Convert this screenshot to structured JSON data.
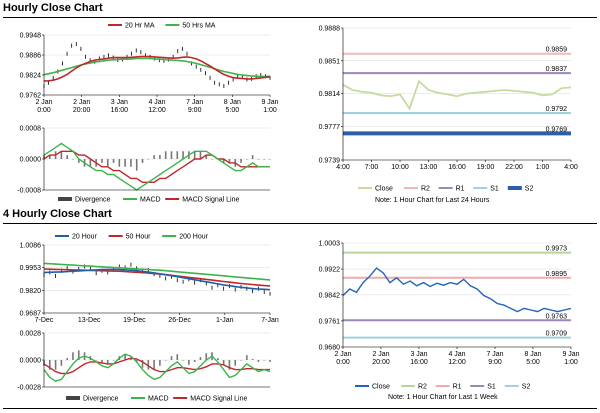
{
  "hourly": {
    "title": "Hourly Close Chart",
    "ma_legend": [
      "20 Hr MA",
      "50 Hrs MA"
    ],
    "price": {
      "yticks": [
        "0.9948",
        "0.9886",
        "0.9824",
        "0.9762"
      ],
      "ylim": [
        0.9762,
        0.9948
      ],
      "xticks": [
        [
          "2 Jan",
          "0:00"
        ],
        [
          "2 Jan",
          "20:00"
        ],
        [
          "3 Jan",
          "16:00"
        ],
        [
          "4 Jan",
          "12:00"
        ],
        [
          "7 Jan",
          "9:00"
        ],
        [
          "8 Jan",
          "5:00"
        ],
        [
          "9 Jan",
          "1:00"
        ]
      ],
      "close": [
        0.979,
        0.98,
        0.9815,
        0.9835,
        0.986,
        0.989,
        0.9915,
        0.992,
        0.9905,
        0.988,
        0.987,
        0.9865,
        0.9875,
        0.988,
        0.9885,
        0.9878,
        0.987,
        0.9872,
        0.988,
        0.989,
        0.99,
        0.9895,
        0.9885,
        0.988,
        0.9875,
        0.987,
        0.9868,
        0.9872,
        0.988,
        0.9898,
        0.9905,
        0.989,
        0.986,
        0.985,
        0.984,
        0.983,
        0.9815,
        0.98,
        0.9795,
        0.979,
        0.98,
        0.981,
        0.9822,
        0.9818,
        0.981,
        0.9812,
        0.982,
        0.9824,
        0.982,
        0.9815
      ],
      "ma20": [
        0.9805,
        0.9806,
        0.9808,
        0.9812,
        0.9818,
        0.9826,
        0.9836,
        0.9846,
        0.9854,
        0.986,
        0.9866,
        0.987,
        0.9872,
        0.9874,
        0.9876,
        0.9878,
        0.9878,
        0.9878,
        0.9878,
        0.9879,
        0.988,
        0.9881,
        0.9881,
        0.9881,
        0.988,
        0.9879,
        0.9878,
        0.9877,
        0.9876,
        0.9877,
        0.9879,
        0.988,
        0.9878,
        0.9874,
        0.9868,
        0.986,
        0.9852,
        0.9843,
        0.9834,
        0.9826,
        0.982,
        0.9816,
        0.9814,
        0.9813,
        0.9812,
        0.9812,
        0.9813,
        0.9815,
        0.9817,
        0.9818
      ],
      "ma50": [
        0.9825,
        0.9828,
        0.9831,
        0.9835,
        0.9839,
        0.9843,
        0.9847,
        0.9851,
        0.9855,
        0.9858,
        0.9861,
        0.9864,
        0.9866,
        0.9868,
        0.987,
        0.9871,
        0.9872,
        0.9873,
        0.9873,
        0.9874,
        0.9875,
        0.9875,
        0.9875,
        0.9875,
        0.9874,
        0.9873,
        0.9872,
        0.9871,
        0.987,
        0.9869,
        0.9868,
        0.9866,
        0.9863,
        0.986,
        0.9856,
        0.9852,
        0.9848,
        0.9843,
        0.9839,
        0.9835,
        0.9832,
        0.9829,
        0.9826,
        0.9824,
        0.9822,
        0.9821,
        0.982,
        0.9819,
        0.9819,
        0.982
      ]
    },
    "macd": {
      "yticks": [
        "0.0008",
        "0.0000",
        "-0.0008"
      ],
      "ylim": [
        -0.0008,
        0.0008
      ],
      "legend": [
        "Divergence",
        "MACD",
        "MACD Signal Line"
      ],
      "macd": [
        0.0001,
        0.0002,
        0.0003,
        0.0004,
        0.0003,
        0.0002,
        0.0,
        -0.0001,
        -0.0002,
        -0.0003,
        -0.0003,
        -0.0004,
        -0.0004,
        -0.0005,
        -0.0006,
        -0.0007,
        -0.0008,
        -0.0007,
        -0.0006,
        -0.0005,
        -0.0004,
        -0.0003,
        -0.0002,
        -0.0001,
        0.0,
        0.0001,
        0.0002,
        0.0002,
        0.0002,
        0.0001,
        0.0,
        -0.0001,
        -0.0002,
        -0.0003,
        -0.0003,
        -0.0002,
        -0.0001,
        -0.0002,
        -0.0002,
        -0.0002
      ],
      "signal": [
        0.0,
        0.0001,
        0.0001,
        0.0002,
        0.0002,
        0.0002,
        0.0001,
        0.0001,
        0.0,
        -0.0001,
        -0.0002,
        -0.0002,
        -0.0003,
        -0.0003,
        -0.0004,
        -0.0005,
        -0.0005,
        -0.0006,
        -0.0006,
        -0.0006,
        -0.0005,
        -0.0005,
        -0.0004,
        -0.0003,
        -0.0002,
        -0.0001,
        0.0,
        0.0,
        0.0001,
        0.0001,
        0.0,
        0.0,
        -0.0001,
        -0.0001,
        -0.0002,
        -0.0002,
        -0.0002,
        -0.0002,
        -0.0002,
        -0.0002
      ],
      "divergence": [
        0.0001,
        0.0001,
        0.0002,
        0.0002,
        0.0001,
        0.0,
        -0.0001,
        -0.0002,
        -0.0002,
        -0.0002,
        -0.0001,
        -0.0002,
        -0.0001,
        -0.0002,
        -0.0002,
        -0.0002,
        -0.0003,
        -0.0001,
        0.0,
        0.0001,
        0.0001,
        0.0002,
        0.0002,
        0.0002,
        0.0002,
        0.0002,
        0.0002,
        0.0002,
        0.0001,
        0.0,
        0.0,
        -0.0001,
        -0.0001,
        -0.0002,
        -0.0001,
        0.0,
        0.0001,
        0.0,
        0.0,
        0.0
      ]
    },
    "levels": {
      "yticks": [
        "0.9888",
        "0.9851",
        "0.9814",
        "0.9777",
        "0.9739"
      ],
      "ylim": [
        0.9739,
        0.9888
      ],
      "xticks": [
        "4:00",
        "7:00",
        "10:00",
        "13:00",
        "16:00",
        "19:00",
        "22:00",
        "1:00",
        "4:00"
      ],
      "close": [
        0.9824,
        0.9818,
        0.9816,
        0.9815,
        0.9812,
        0.9811,
        0.9813,
        0.9797,
        0.9828,
        0.9818,
        0.9815,
        0.9813,
        0.9811,
        0.9814,
        0.9815,
        0.9816,
        0.9817,
        0.9818,
        0.9817,
        0.9816,
        0.9815,
        0.9812,
        0.9813,
        0.982,
        0.9821
      ],
      "r2": 0.9859,
      "r1": 0.9837,
      "s1": 0.9792,
      "s2": 0.9769,
      "r2_label": "0.9859",
      "r1_label": "0.9837",
      "s1_label": "0.9792",
      "s2_label": "0.9769",
      "legend": [
        "Close",
        "R2",
        "R1",
        "S1",
        "S2"
      ],
      "note": "Note: 1 Hour Chart for Last 24 Hours"
    }
  },
  "four_hourly": {
    "title": "4 Hourly Close Chart",
    "ma_legend": [
      "20 Hour",
      "50 Hour",
      "200 Hour"
    ],
    "price": {
      "yticks": [
        "1.0086",
        "0.9953",
        "0.9820",
        "0.9687"
      ],
      "ylim": [
        0.9687,
        1.0086
      ],
      "xticks": [
        "7-Dec",
        "13-Dec",
        "19-Dec",
        "26-Dec",
        "1-Jan",
        "7-Jan"
      ],
      "close": [
        0.991,
        0.9925,
        0.9905,
        0.9935,
        0.995,
        0.993,
        0.9945,
        0.996,
        0.995,
        0.992,
        0.9935,
        0.9925,
        0.9945,
        0.996,
        0.9955,
        0.997,
        0.995,
        0.993,
        0.994,
        0.9915,
        0.9905,
        0.989,
        0.99,
        0.988,
        0.987,
        0.9885,
        0.9865,
        0.988,
        0.986,
        0.9835,
        0.985,
        0.983,
        0.9845,
        0.9825,
        0.984,
        0.983,
        0.9815,
        0.983,
        0.981,
        0.98
      ],
      "ma20": [
        0.9925,
        0.9926,
        0.9927,
        0.9928,
        0.993,
        0.9932,
        0.9934,
        0.9936,
        0.9938,
        0.994,
        0.9942,
        0.9943,
        0.9943,
        0.9942,
        0.994,
        0.9938,
        0.9935,
        0.9931,
        0.9927,
        0.9922,
        0.9917,
        0.9912,
        0.9906,
        0.99,
        0.9894,
        0.9888,
        0.9882,
        0.9876,
        0.987,
        0.9864,
        0.9858,
        0.9852,
        0.9847,
        0.9842,
        0.9838,
        0.9834,
        0.983,
        0.9828,
        0.9826,
        0.9824
      ],
      "ma50": [
        0.9945,
        0.9944,
        0.9943,
        0.9942,
        0.9941,
        0.994,
        0.9939,
        0.9938,
        0.9937,
        0.9936,
        0.9935,
        0.9934,
        0.9933,
        0.9932,
        0.993,
        0.9928,
        0.9926,
        0.9924,
        0.9921,
        0.9918,
        0.9915,
        0.9912,
        0.9908,
        0.9904,
        0.99,
        0.9896,
        0.9892,
        0.9888,
        0.9884,
        0.988,
        0.9876,
        0.9872,
        0.9868,
        0.9864,
        0.986,
        0.9857,
        0.9854,
        0.9851,
        0.9848,
        0.9846
      ],
      "ma200": [
        0.9978,
        0.9976,
        0.9974,
        0.9972,
        0.997,
        0.9968,
        0.9966,
        0.9964,
        0.9962,
        0.996,
        0.9958,
        0.9956,
        0.9954,
        0.9952,
        0.995,
        0.9948,
        0.9946,
        0.9944,
        0.9942,
        0.994,
        0.9938,
        0.9935,
        0.9932,
        0.9929,
        0.9926,
        0.9923,
        0.992,
        0.9917,
        0.9914,
        0.9911,
        0.9908,
        0.9905,
        0.9902,
        0.9899,
        0.9896,
        0.9893,
        0.989,
        0.9887,
        0.9884,
        0.9881
      ]
    },
    "macd": {
      "yticks": [
        "0.0028",
        "0.0000",
        "-0.0028"
      ],
      "ylim": [
        -0.0028,
        0.0028
      ],
      "legend": [
        "Divergence",
        "MACD",
        "MACD Signal Line"
      ],
      "macd": [
        -0.001,
        -0.0018,
        -0.0022,
        -0.002,
        -0.0012,
        -0.0004,
        0.0002,
        0.0004,
        0.0002,
        -0.0002,
        -0.0006,
        -0.0008,
        -0.0004,
        0.0002,
        0.0006,
        0.0004,
        -0.0002,
        -0.001,
        -0.0016,
        -0.002,
        -0.0018,
        -0.0012,
        -0.0006,
        -0.0002,
        -0.0008,
        -0.0014,
        -0.0012,
        -0.0006,
        0.0,
        0.0004,
        -0.0002,
        -0.001,
        -0.0018,
        -0.0016,
        -0.001,
        -0.0004,
        -0.0008,
        -0.0012,
        -0.001,
        -0.0012
      ],
      "signal": [
        -0.0004,
        -0.0008,
        -0.0012,
        -0.0014,
        -0.0014,
        -0.0012,
        -0.0008,
        -0.0004,
        -0.0002,
        -0.0002,
        -0.0003,
        -0.0004,
        -0.0004,
        -0.0002,
        0.0,
        0.0002,
        0.0001,
        -0.0002,
        -0.0006,
        -0.001,
        -0.0012,
        -0.0012,
        -0.001,
        -0.0008,
        -0.0008,
        -0.0009,
        -0.001,
        -0.0009,
        -0.0007,
        -0.0004,
        -0.0004,
        -0.0005,
        -0.0008,
        -0.001,
        -0.001,
        -0.0009,
        -0.0009,
        -0.001,
        -0.001,
        -0.001
      ],
      "divergence": [
        -0.0006,
        -0.001,
        -0.001,
        -0.0006,
        0.0002,
        0.0008,
        0.001,
        0.0008,
        0.0004,
        0.0,
        -0.0003,
        -0.0004,
        0.0,
        0.0004,
        0.0006,
        0.0002,
        -0.0003,
        -0.0008,
        -0.001,
        -0.001,
        -0.0006,
        0.0,
        0.0004,
        0.0006,
        0.0,
        -0.0005,
        -0.0002,
        0.0003,
        0.0007,
        0.0008,
        0.0002,
        -0.0005,
        -0.001,
        -0.0006,
        0.0,
        0.0005,
        0.0001,
        -0.0002,
        0.0,
        -0.0002
      ]
    },
    "levels": {
      "yticks": [
        "1.0003",
        "0.9922",
        "0.9842",
        "0.9761",
        "0.9680"
      ],
      "ylim": [
        0.968,
        1.0003
      ],
      "xticks": [
        [
          "2 Jan",
          "0:00"
        ],
        [
          "2 Jan",
          "20:00"
        ],
        [
          "3 Jan",
          "16:00"
        ],
        [
          "4 Jan",
          "12:00"
        ],
        [
          "7 Jan",
          "9:00"
        ],
        [
          "8 Jan",
          "5:00"
        ],
        [
          "9 Jan",
          "1:00"
        ]
      ],
      "close": [
        0.984,
        0.986,
        0.985,
        0.988,
        0.99,
        0.9925,
        0.991,
        0.988,
        0.9895,
        0.9875,
        0.9885,
        0.987,
        0.988,
        0.9868,
        0.9878,
        0.9872,
        0.988,
        0.9875,
        0.989,
        0.987,
        0.986,
        0.984,
        0.983,
        0.9815,
        0.981,
        0.98,
        0.979,
        0.98,
        0.9795,
        0.979,
        0.98,
        0.9795,
        0.979,
        0.9795,
        0.98
      ],
      "r2": 0.9973,
      "r1": 0.9895,
      "s1": 0.9763,
      "s2": 0.9709,
      "r2_label": "0.9973",
      "r1_label": "0.9895",
      "s1_label": "0.9763",
      "s2_label": "0.9709",
      "legend": [
        "Close",
        "R2",
        "R1",
        "S1",
        "S2"
      ],
      "note": "Note: 1 Hour Chart for Last 1 Week"
    }
  },
  "colors": {
    "ma20": "#1f5fa8",
    "ma50_h": "#3cb44b",
    "ma_red": "#c0272d",
    "ma200": "#3cb44b",
    "price": "#000000",
    "macd": "#3cb44b",
    "signal": "#c0272d",
    "divergence": "#777777",
    "close_light": "#c6dba0",
    "close_dark": "#2266b8",
    "r2": "#f2b8b5",
    "r1": "#9d86b8",
    "s1": "#9bd3de",
    "s2": "#2c5fa6",
    "r2_wk": "#b5d79a",
    "r1_wk": "#f0aaa8",
    "s1_wk": "#9d86b8",
    "s2_wk": "#9bd3de"
  },
  "chart_data": [
    {
      "type": "line",
      "title": "Hourly Close Chart",
      "series": [
        {
          "name": "20 Hr MA"
        },
        {
          "name": "50 Hrs MA"
        }
      ],
      "ylim": [
        0.9762,
        0.9948
      ]
    },
    {
      "type": "line",
      "series": [
        {
          "name": "Divergence"
        },
        {
          "name": "MACD"
        },
        {
          "name": "MACD Signal Line"
        }
      ],
      "ylim": [
        -0.0008,
        0.0008
      ]
    },
    {
      "type": "line",
      "series": [
        {
          "name": "Close"
        },
        {
          "name": "R2",
          "value": 0.9859
        },
        {
          "name": "R1",
          "value": 0.9837
        },
        {
          "name": "S1",
          "value": 0.9792
        },
        {
          "name": "S2",
          "value": 0.9769
        }
      ],
      "ylim": [
        0.9739,
        0.9888
      ]
    },
    {
      "type": "line",
      "title": "4 Hourly Close Chart",
      "series": [
        {
          "name": "20 Hour"
        },
        {
          "name": "50 Hour"
        },
        {
          "name": "200 Hour"
        }
      ],
      "ylim": [
        0.9687,
        1.0086
      ]
    },
    {
      "type": "line",
      "series": [
        {
          "name": "Divergence"
        },
        {
          "name": "MACD"
        },
        {
          "name": "MACD Signal Line"
        }
      ],
      "ylim": [
        -0.0028,
        0.0028
      ]
    },
    {
      "type": "line",
      "series": [
        {
          "name": "Close"
        },
        {
          "name": "R2",
          "value": 0.9973
        },
        {
          "name": "R1",
          "value": 0.9895
        },
        {
          "name": "S1",
          "value": 0.9763
        },
        {
          "name": "S2",
          "value": 0.9709
        }
      ],
      "ylim": [
        0.968,
        1.0003
      ]
    }
  ]
}
